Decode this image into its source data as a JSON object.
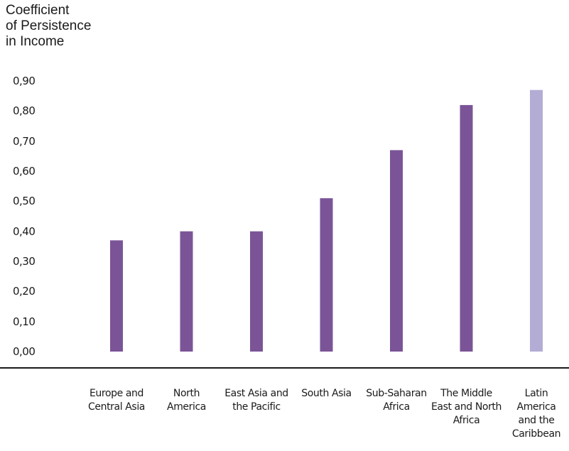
{
  "chart_data": {
    "type": "bar",
    "ylabel": "Coefficient\nof Persistence\nin Income",
    "xlabel": "",
    "ylim": [
      0,
      0.9
    ],
    "yticks": [
      "0,90",
      "0,80",
      "0,70",
      "0,60",
      "0,50",
      "0,40",
      "0,30",
      "0,20",
      "0,10",
      "0,00"
    ],
    "ytick_values": [
      0.9,
      0.8,
      0.7,
      0.6,
      0.5,
      0.4,
      0.3,
      0.2,
      0.1,
      0.0
    ],
    "grid": false,
    "categories": [
      "Europe and\nCentral Asia",
      "North\nAmerica",
      "East Asia and\nthe Pacific",
      "South Asia",
      "Sub-Saharan\nAfrica",
      "The Middle\nEast and North\nAfrica",
      "Latin\nAmerica\nand the\nCaribbean"
    ],
    "values": [
      0.37,
      0.4,
      0.4,
      0.51,
      0.67,
      0.82,
      0.87
    ],
    "colors": [
      "#7b5497",
      "#7b5497",
      "#7b5497",
      "#7b5497",
      "#7b5497",
      "#7b5497",
      "#b3acd5"
    ]
  }
}
